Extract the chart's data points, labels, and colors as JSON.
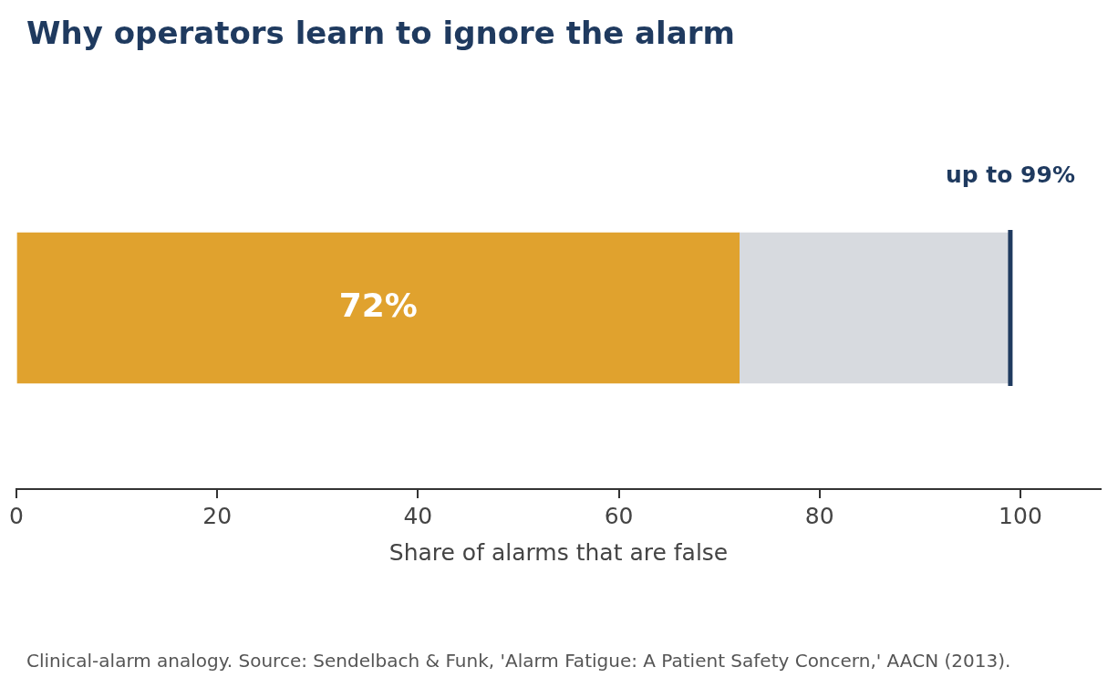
{
  "chart_data": {
    "type": "bar",
    "title": "Why operators learn to ignore the alarm",
    "xlabel": "Share of alarms that are false",
    "orientation": "horizontal",
    "stacked": true,
    "categories": [
      null
    ],
    "series": [
      {
        "color": "#e0a22e",
        "values": [
          72
        ],
        "value_labels": [
          "72%"
        ]
      },
      {
        "color": "#d7dadf",
        "values": [
          27
        ]
      }
    ],
    "xlim": [
      0,
      108
    ],
    "xticks": [
      0,
      20,
      40,
      60,
      80,
      100
    ],
    "grid": false,
    "legend": false,
    "tick_labels": "x",
    "ref_lines": [
      {
        "axis": "x",
        "value": 99,
        "label": "up to 99%",
        "color": "#1f3a5f"
      }
    ],
    "annotations": [
      "Clinical-alarm analogy. Source: Sendelbach & Funk, 'Alarm Fatigue: A Patient Safety Concern,' AACN (2013)."
    ]
  }
}
